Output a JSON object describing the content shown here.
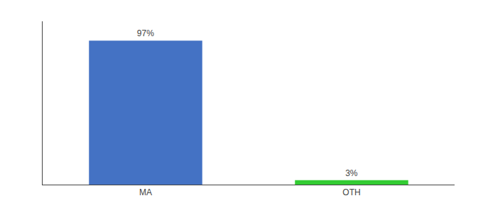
{
  "chart_data": {
    "type": "bar",
    "categories": [
      "MA",
      "OTH"
    ],
    "values": [
      97,
      3
    ],
    "colors": [
      "#4472c4",
      "#33cc33"
    ],
    "data_labels": true,
    "value_labels": [
      "97%",
      "3%"
    ],
    "ylim": [
      0,
      110
    ],
    "yticks": [],
    "tick_labels": "x",
    "grid": false
  }
}
